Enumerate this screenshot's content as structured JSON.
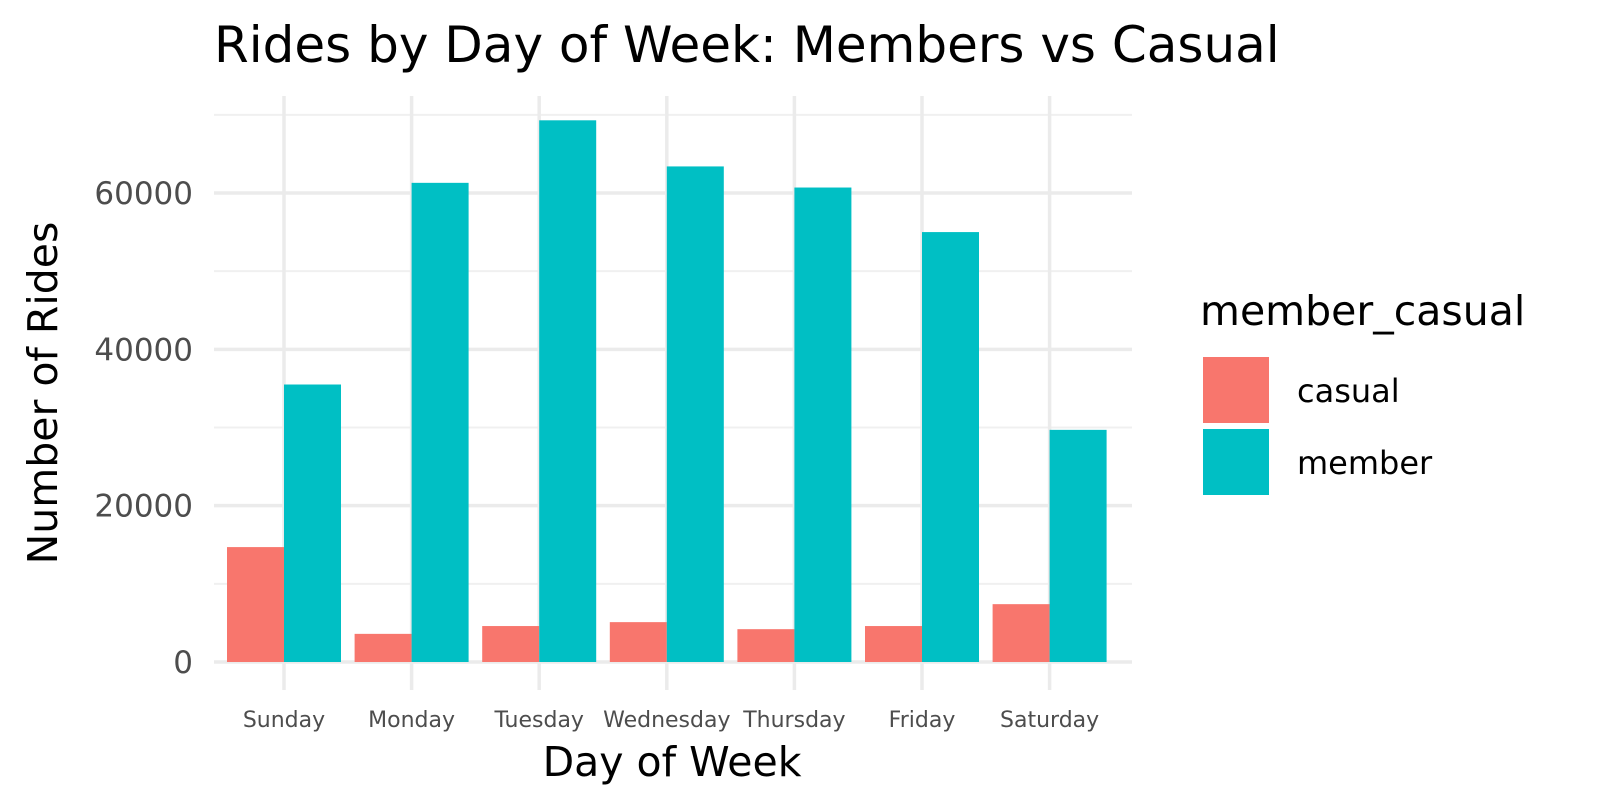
{
  "chart_data": {
    "type": "bar",
    "title": "Rides by Day of Week: Members vs Casual",
    "xlabel": "Day of Week",
    "ylabel": "Number of Rides",
    "categories": [
      "Sunday",
      "Monday",
      "Tuesday",
      "Wednesday",
      "Thursday",
      "Friday",
      "Saturday"
    ],
    "series": [
      {
        "name": "casual",
        "color": "#F8766D",
        "values": [
          14700,
          3600,
          4600,
          5100,
          4200,
          4600,
          7400
        ]
      },
      {
        "name": "member",
        "color": "#00BFC4",
        "values": [
          35500,
          61300,
          69300,
          63400,
          60700,
          55000,
          29700
        ]
      }
    ],
    "ylim": [
      0,
      72000
    ],
    "yticks": [
      0,
      20000,
      40000,
      60000
    ],
    "ytick_labels": [
      "0",
      "20000",
      "40000",
      "60000"
    ],
    "grid": true,
    "legend": {
      "title": "member_casual",
      "position": "right"
    }
  }
}
